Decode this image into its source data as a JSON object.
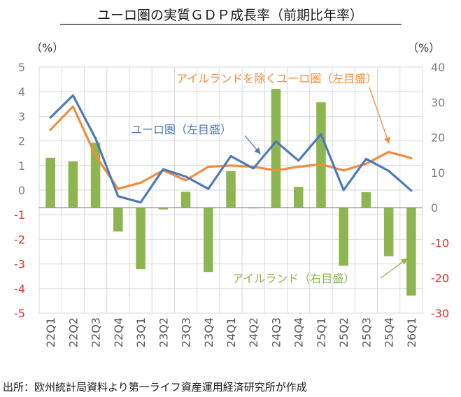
{
  "title": "ユーロ圏の実質ＧＤＰ成長率（前期比年率）",
  "source": "出所：欧州統計局資料より第一ライフ資産運用経済研究所が作成",
  "colors": {
    "bar": "#8db550",
    "euro_line": "#4d7ab8",
    "ireland_ex_line": "#f28c3c",
    "negative_tick": "#e0302a",
    "positive_tick": "#7f7f7f",
    "grid": "#d9d9d9"
  },
  "chart_data": {
    "type": "bar",
    "left_axis": {
      "unit": "（%）",
      "ylim": [
        -5,
        5
      ],
      "ticks": [
        5,
        4,
        3,
        2,
        1,
        0,
        -1,
        -2,
        -3,
        -4,
        -5
      ]
    },
    "right_axis": {
      "unit": "（%）",
      "ylim": [
        -30,
        40
      ],
      "ticks": [
        40,
        30,
        20,
        10,
        0,
        -10,
        -20,
        -30
      ]
    },
    "grid": true,
    "categories": [
      "22Q1",
      "22Q2",
      "22Q3",
      "22Q4",
      "23Q1",
      "23Q2",
      "23Q3",
      "23Q4",
      "24Q1",
      "24Q2",
      "24Q3",
      "24Q4",
      "25Q1",
      "25Q2",
      "25Q3",
      "25Q4",
      "26Q1"
    ],
    "series": [
      {
        "name": "アイルランド（右目盛）",
        "type": "bar",
        "axis": "right",
        "values": [
          14.2,
          13.2,
          18.5,
          -6.8,
          -17.5,
          -0.5,
          4.5,
          -18.3,
          10.4,
          0.0,
          33.8,
          5.9,
          30.0,
          -16.5,
          4.4,
          -13.8,
          -25.0
        ]
      },
      {
        "name": "ユーロ圏（左目盛）",
        "type": "line",
        "axis": "left",
        "values": [
          2.95,
          3.85,
          2.1,
          -0.25,
          -0.5,
          0.85,
          0.55,
          0.05,
          1.38,
          0.88,
          1.98,
          1.2,
          2.27,
          0.0,
          1.27,
          0.78,
          -0.02
        ]
      },
      {
        "name": "アイルランドを除くユーロ圏（左目盛）",
        "type": "line",
        "axis": "left",
        "values": [
          2.45,
          3.4,
          1.4,
          0.05,
          0.3,
          0.8,
          0.4,
          0.95,
          1.0,
          0.95,
          0.8,
          0.95,
          1.05,
          0.8,
          1.07,
          1.55,
          1.3
        ]
      }
    ],
    "annotations": [
      {
        "text": "アイルランドを除くユーロ圏（左目盛）"
      },
      {
        "text": "ユーロ圏（左目盛）"
      },
      {
        "text": "アイルランド（右目盛）"
      }
    ]
  }
}
